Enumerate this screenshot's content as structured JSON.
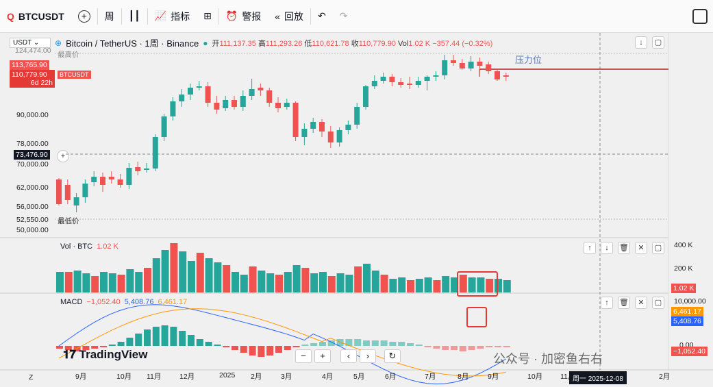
{
  "toolbar": {
    "symbol": "BTCUSDT",
    "interval": "周",
    "indicators": "指标",
    "alert": "警报",
    "replay": "回放"
  },
  "legend": {
    "currency": "USDT",
    "title": "Bitcoin / TetherUS · 1周 · Binance",
    "o_lbl": "开",
    "o": "111,137.35",
    "h_lbl": "高",
    "h": "111,293.26",
    "l_lbl": "低",
    "l": "110,621.78",
    "c_lbl": "收",
    "c": "110,779.90",
    "vol_lbl": "Vol",
    "vol": "1.02 K",
    "chg": "−357.44 (−0.32%)",
    "high_marker": "最高价",
    "low_marker": "最低价",
    "symbol_tag": "BTCUSDT"
  },
  "annotation": {
    "resistance": "压力位"
  },
  "price_axis": {
    "ticks": [
      "90,000.00",
      "78,000.00",
      "70,000.00",
      "62,000.00",
      "56,000.00",
      "50,000.00"
    ],
    "top_label": "124,474.00",
    "label_a": "113,765.90",
    "label_b": "110,779.90",
    "countdown": "6d 22h",
    "crosshair": "73,476.90",
    "low": "52,550.00"
  },
  "volume": {
    "label": "Vol · BTC",
    "value": "1.02 K",
    "ticks": [
      "400 K",
      "200 K"
    ],
    "current": "1.02 K"
  },
  "macd": {
    "label": "MACD",
    "v1": "−1,052.40",
    "v2": "5,408.76",
    "v3": "6,461.17",
    "ticks": [
      "10,000.00",
      "0.00"
    ],
    "signal_val": "6,461.17",
    "macd_val": "5,408.76",
    "hist_val": "−1,052.40"
  },
  "time_axis": {
    "left": "Z",
    "labels": [
      "9月",
      "10月",
      "11月",
      "12月",
      "2025",
      "2月",
      "3月",
      "4月",
      "5月",
      "6月",
      "7月",
      "8月",
      "9月",
      "10月",
      "11月",
      "2月"
    ],
    "crosshair": "周一 2025-12-08"
  },
  "brand": {
    "name": "TradingView"
  },
  "watermark": "公众号 · 加密鱼右右",
  "colors": {
    "up": "#26a69a",
    "down": "#ef5350",
    "resistance": "#b71c1c",
    "macd": "#2962ff",
    "signal": "#ff9800"
  }
}
